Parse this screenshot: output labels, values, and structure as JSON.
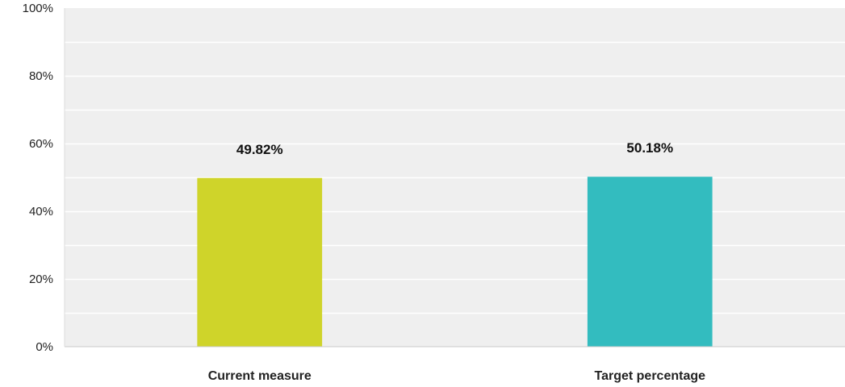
{
  "chart_data": {
    "type": "bar",
    "title": "",
    "xlabel": "",
    "ylabel": "",
    "categories": [
      "Current measure",
      "Target percentage"
    ],
    "values": [
      49.82,
      50.18
    ],
    "data_labels": [
      "49.82%",
      "50.18%"
    ],
    "ylim": [
      0,
      100
    ],
    "yticks": [
      0,
      20,
      40,
      60,
      80,
      100
    ],
    "ytick_labels": [
      "0%",
      "20%",
      "40%",
      "60%",
      "80%",
      "100%"
    ],
    "grid": true,
    "legend": "none",
    "colors": {
      "bars": [
        "#cfd42a",
        "#33bcbf"
      ],
      "plot_background": "#efefef",
      "gridline": "#ffffff",
      "axis": "#c8c8c8"
    }
  }
}
